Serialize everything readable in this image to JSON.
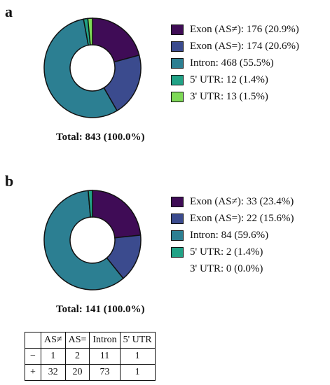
{
  "colors": {
    "exon_as_neq": "#3f0c56",
    "exon_as_eq": "#3b4b8e",
    "intron": "#2c7f92",
    "utr5": "#21a286",
    "utr3": "#7ed957",
    "outline": "#111111"
  },
  "chart_data": [
    {
      "type": "pie",
      "panel": "a",
      "categories": [
        "Exon (AS≠)",
        "Exon (AS=)",
        "Intron",
        "5' UTR",
        "3' UTR"
      ],
      "values": [
        176,
        174,
        468,
        12,
        13
      ],
      "percentages": [
        20.9,
        20.6,
        55.5,
        1.4,
        1.5
      ],
      "legend": [
        "Exon (AS≠): 176 (20.9%)",
        "Exon (AS=): 174 (20.6%)",
        "Intron: 468 (55.5%)",
        "5' UTR: 12 (1.4%)",
        "3' UTR: 13 (1.5%)"
      ],
      "legend_position": "right",
      "total_label": "Total: 843 (100.0%)"
    },
    {
      "type": "pie",
      "panel": "b",
      "categories": [
        "Exon (AS≠)",
        "Exon (AS=)",
        "Intron",
        "5' UTR",
        "3' UTR"
      ],
      "values": [
        33,
        22,
        84,
        2,
        0
      ],
      "percentages": [
        23.4,
        15.6,
        59.6,
        1.4,
        0.0
      ],
      "legend": [
        "Exon (AS≠): 33 (23.4%)",
        "Exon (AS=): 22 (15.6%)",
        "Intron: 84 (59.6%)",
        "5' UTR: 2 (1.4%)",
        "3' UTR: 0 (0.0%)"
      ],
      "legend_position": "right",
      "total_label": "Total: 141 (100.0%)"
    }
  ],
  "table": {
    "headers": [
      "",
      "AS≠",
      "AS=",
      "Intron",
      "5' UTR"
    ],
    "rows": [
      [
        "−",
        "1",
        "2",
        "11",
        "1"
      ],
      [
        "+",
        "32",
        "20",
        "73",
        "1"
      ]
    ]
  }
}
